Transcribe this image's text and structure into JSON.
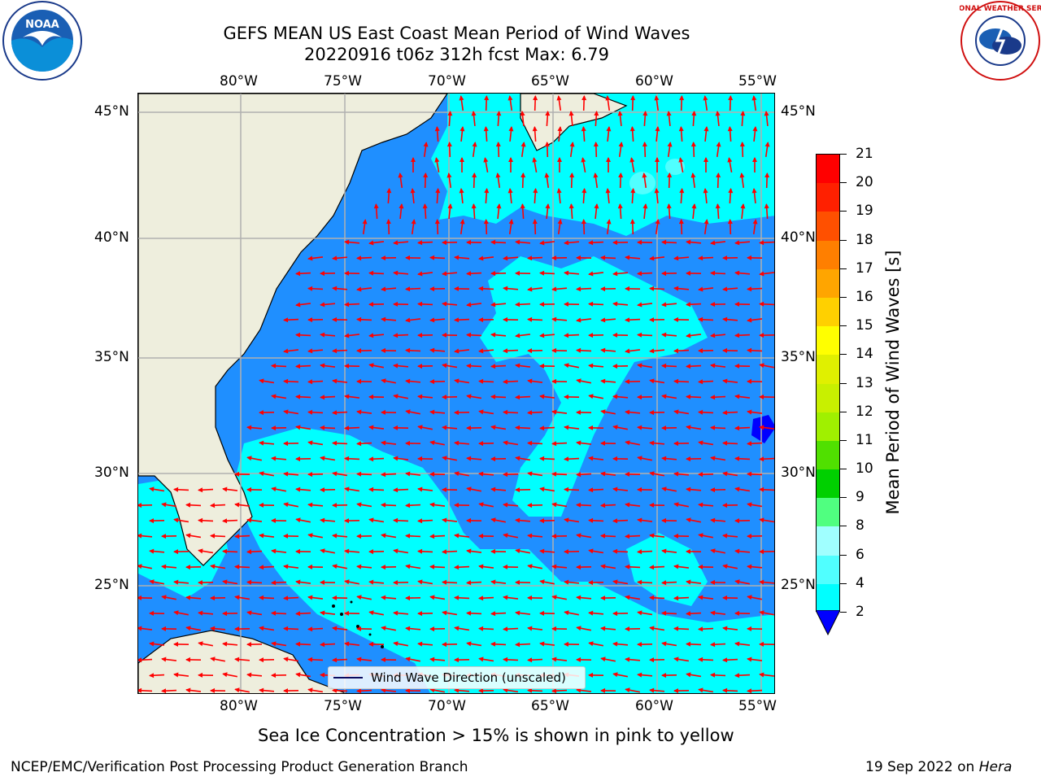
{
  "header": {
    "title_line1": "GEFS MEAN US East Coast Mean Period of Wind Waves",
    "title_line2": "20220916 t06z 312h fcst   Max: 6.79"
  },
  "map": {
    "lon_labels": [
      "80°W",
      "75°W",
      "70°W",
      "65°W",
      "60°W",
      "55°W"
    ],
    "lat_labels": [
      "45°N",
      "40°N",
      "35°N",
      "30°N",
      "25°N"
    ],
    "colors": {
      "land": "#eeeedd",
      "band_2_4": "#1f8fff",
      "band_4_6": "#00ffff",
      "band_6_8": "#50ffff",
      "arrow": "#ff0000",
      "grid": "#b0b0b0",
      "coast": "#000000"
    }
  },
  "legend": {
    "label": "Wind Wave Direction (unscaled)"
  },
  "colorbar": {
    "title": "Mean Period of Wind Waves [s]",
    "ticks": [
      "21",
      "20",
      "19",
      "18",
      "17",
      "16",
      "15",
      "14",
      "13",
      "12",
      "11",
      "10",
      "9",
      "8",
      "6",
      "4",
      "2"
    ],
    "colors": [
      "#ff0000",
      "#ff2000",
      "#ff5000",
      "#ff7f00",
      "#ffa500",
      "#ffd000",
      "#ffff00",
      "#e0f000",
      "#c8f000",
      "#a0f000",
      "#50e000",
      "#00d000",
      "#50ff80",
      "#a0ffff",
      "#50ffff",
      "#00ffff",
      "#1f8fff"
    ],
    "extend_color": "#0000ff"
  },
  "footer": {
    "ice_note": "Sea Ice Concentration > 15% is shown in pink to yellow",
    "branch": "NCEP/EMC/Verification Post Processing Product Generation Branch",
    "date": "19 Sep 2022 on ",
    "machine": "Hera"
  },
  "logos": {
    "noaa": "NOAA",
    "nws": "NATIONAL WEATHER SERVICE"
  }
}
